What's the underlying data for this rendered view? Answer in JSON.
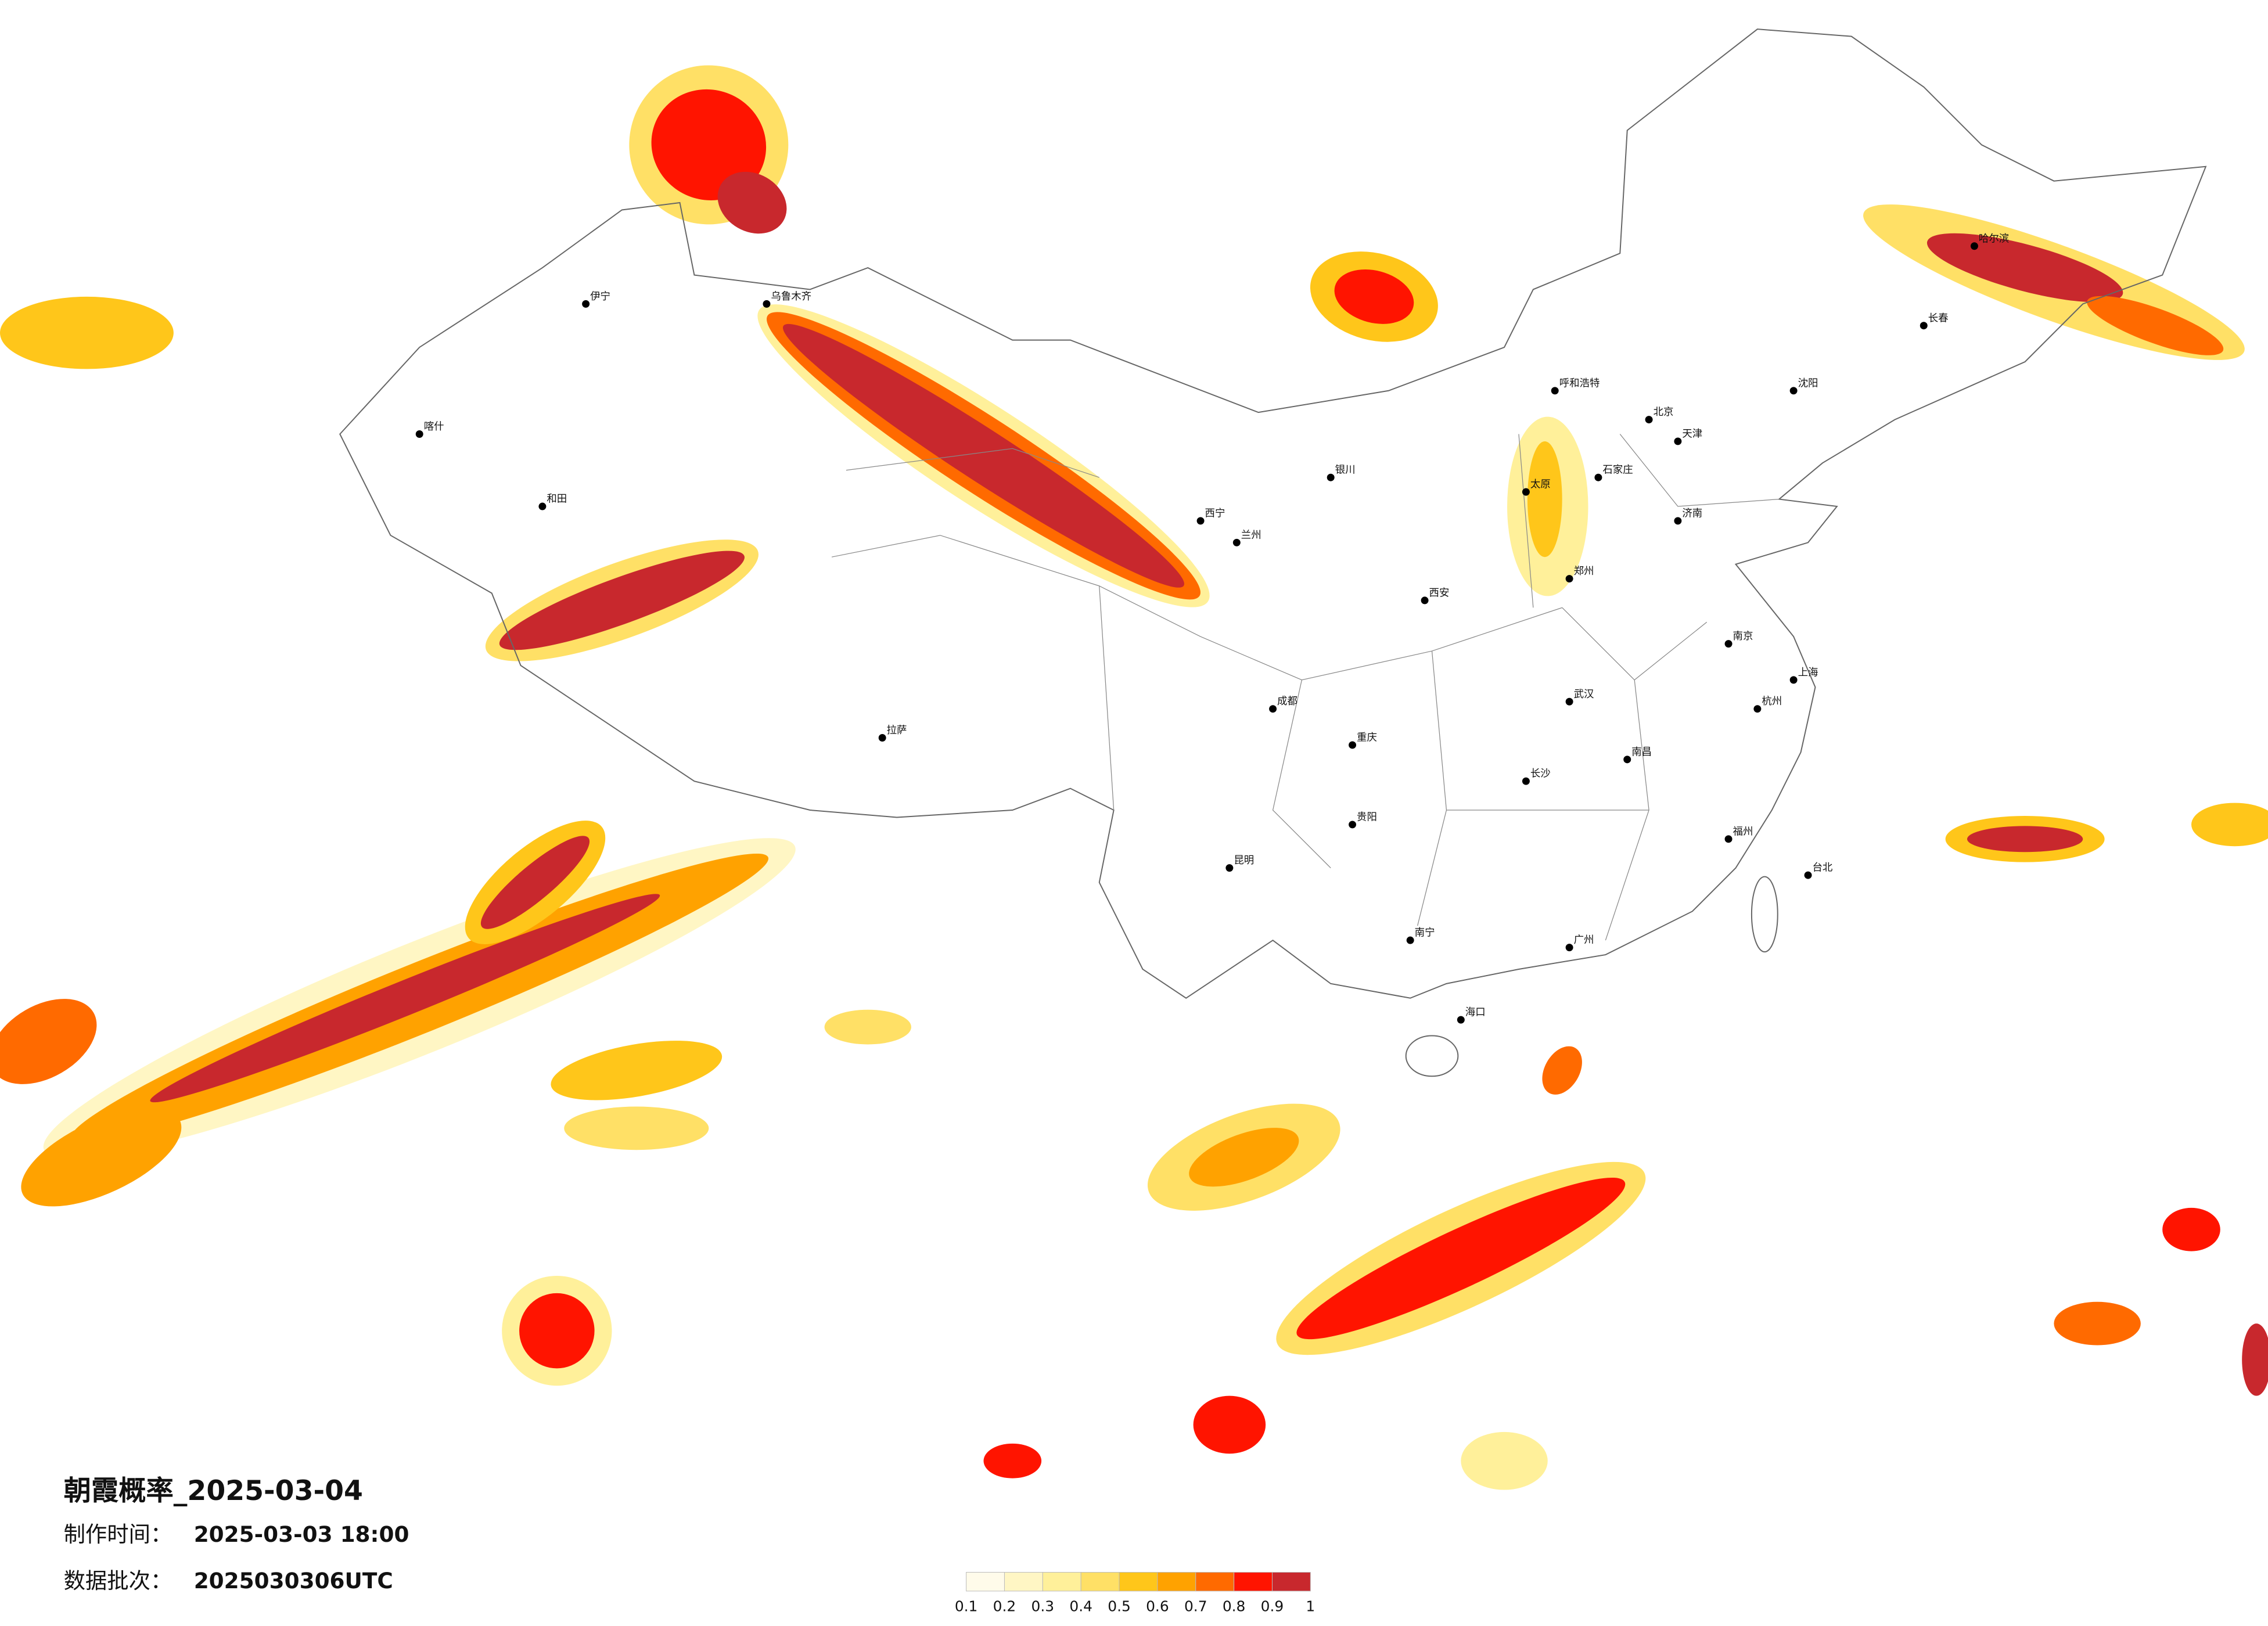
{
  "title": "朝霞概率_2025-03-04",
  "production_time": {
    "label": "制作时间：",
    "value": "2025-03-03 18:00"
  },
  "data_batch": {
    "label": "数据批次：",
    "value": "2025030306UTC"
  },
  "legend": {
    "colors": [
      "#fffbea",
      "#fff6c4",
      "#fff09a",
      "#ffe066",
      "#ffc61a",
      "#ffa200",
      "#ff6a00",
      "#ff1400",
      "#c8282d"
    ],
    "ticks": [
      0.1,
      0.2,
      0.3,
      0.4,
      0.5,
      0.6,
      0.7,
      0.8,
      0.9,
      1
    ]
  },
  "cities": [
    "北京",
    "天津",
    "石家庄",
    "太原",
    "呼和浩特",
    "沈阳",
    "长春",
    "哈尔滨",
    "济南",
    "郑州",
    "西安",
    "兰州",
    "西宁",
    "银川",
    "乌鲁木齐",
    "拉萨",
    "成都",
    "重庆",
    "武汉",
    "长沙",
    "南昌",
    "南京",
    "上海",
    "杭州",
    "福州",
    "广州",
    "南宁",
    "昆明",
    "贵阳",
    "海口",
    "台北",
    "和田",
    "喀什",
    "伊宁"
  ]
}
